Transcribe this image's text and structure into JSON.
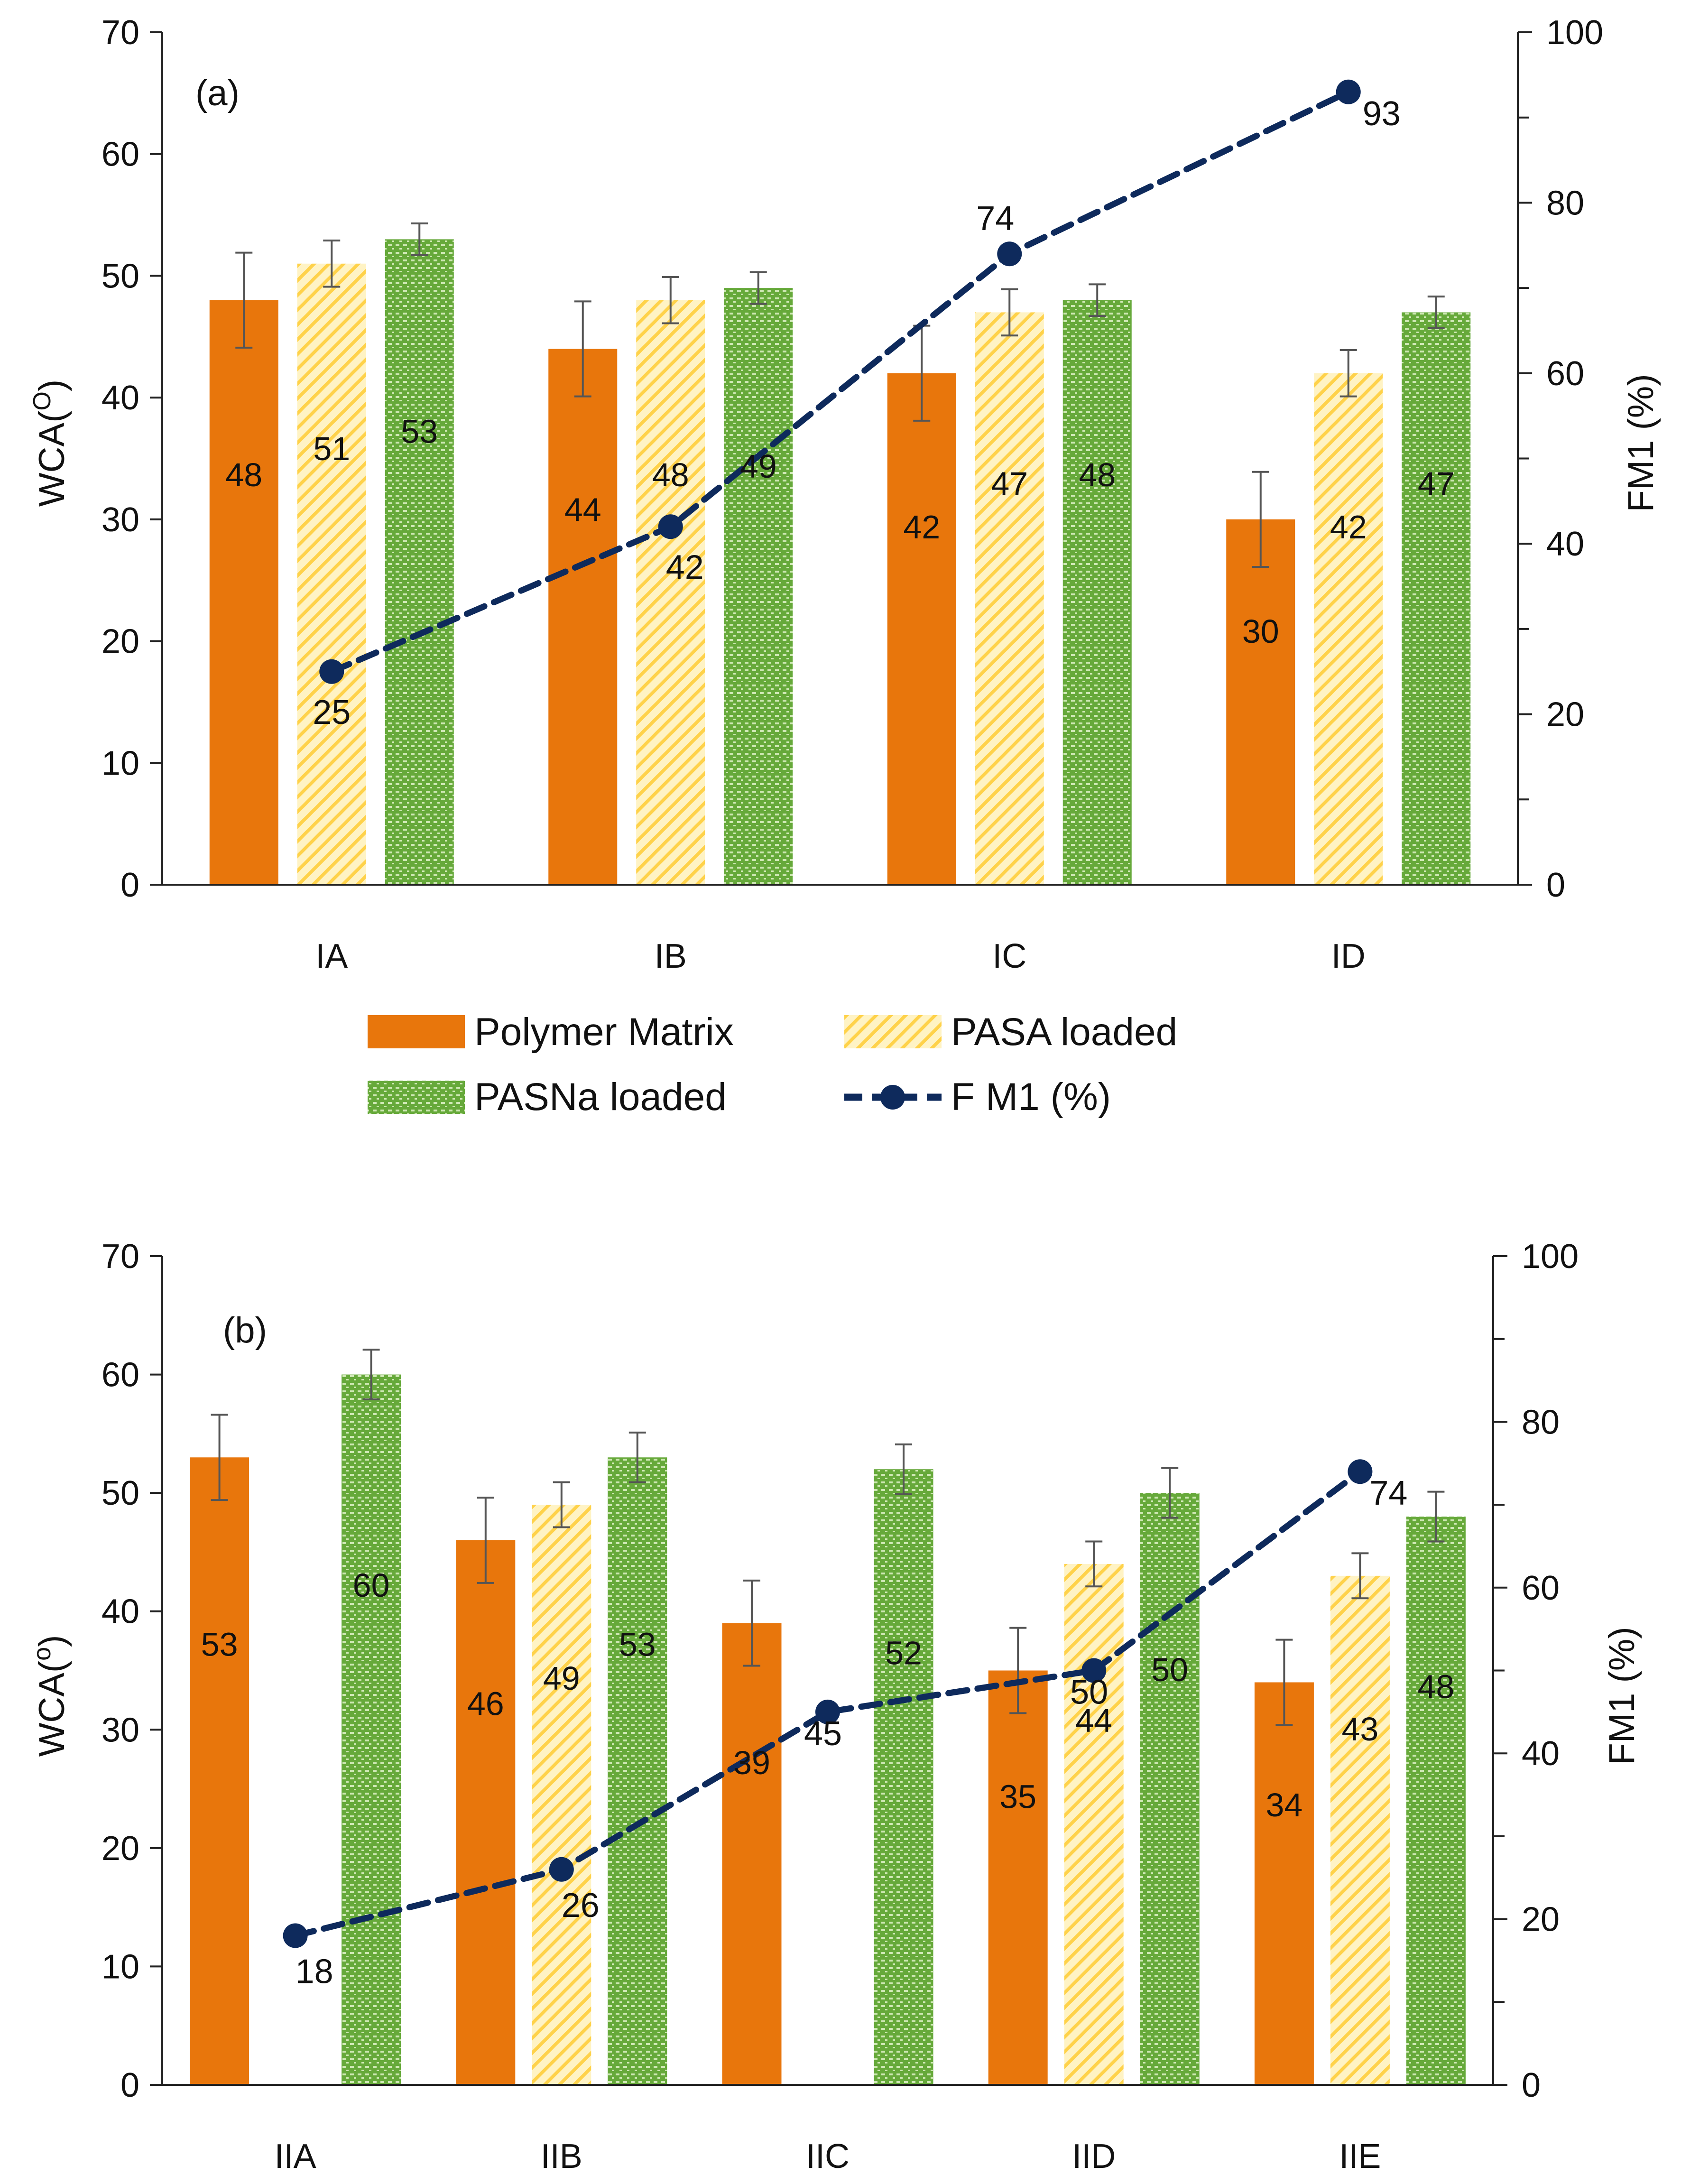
{
  "colors": {
    "polymer": "#E8760C",
    "pasa_fill": "#FFD24A",
    "pasa_stripe": "#FFF3C4",
    "pasna_fill": "#66A93A",
    "pasna_dot": "#CFE8B5",
    "line": "#0E2A5C",
    "axis": "#222222",
    "err": "#555555"
  },
  "legend": {
    "polymer": "Polymer Matrix",
    "pasa": "PASA loaded",
    "pasna": "PASNa loaded",
    "fm1": "F M1 (%)"
  },
  "chart_data": [
    {
      "type": "bar",
      "panel_label": "(a)",
      "ylabel": "WCA(O)",
      "y2label": "FM1 (%)",
      "ylim": [
        0,
        70
      ],
      "y2lim": [
        0,
        100
      ],
      "ymajor": 10,
      "y2major": 20,
      "y2minor": 10,
      "yticks": [
        "0",
        "10",
        "20",
        "30",
        "40",
        "50",
        "60",
        "70"
      ],
      "y2ticks": [
        "0",
        "20",
        "40",
        "60",
        "80",
        "100"
      ],
      "categories": [
        "IA",
        "IB",
        "IC",
        "ID"
      ],
      "series": [
        {
          "name": "Polymer Matrix",
          "key": "polymer",
          "values": [
            48,
            44,
            42,
            30
          ],
          "errors": [
            3.9,
            3.9,
            3.9,
            3.9
          ],
          "labels": [
            "48",
            "44",
            "42",
            "30"
          ]
        },
        {
          "name": "PASA loaded",
          "key": "pasa",
          "values": [
            51,
            48,
            47,
            42
          ],
          "errors": [
            1.9,
            1.9,
            1.9,
            1.9
          ],
          "labels": [
            "51",
            "48",
            "47",
            "42"
          ]
        },
        {
          "name": "PASNa loaded",
          "key": "pasna",
          "values": [
            53,
            49,
            48,
            47
          ],
          "errors": [
            1.3,
            1.3,
            1.3,
            1.3
          ],
          "labels": [
            "53",
            "49",
            "48",
            "47"
          ]
        }
      ],
      "line": {
        "name": "F M1 (%)",
        "values": [
          25,
          42,
          74,
          93
        ],
        "labels": [
          "25",
          "42",
          "74",
          "93"
        ]
      }
    },
    {
      "type": "bar",
      "panel_label": "(b)",
      "ylabel": "WCA(o)",
      "y2label": "FM1 (%)",
      "ylim": [
        0,
        70
      ],
      "y2lim": [
        0,
        100
      ],
      "ymajor": 10,
      "y2major": 20,
      "y2minor": 10,
      "yticks": [
        "0",
        "10",
        "20",
        "30",
        "40",
        "50",
        "60",
        "70"
      ],
      "y2ticks": [
        "0",
        "20",
        "40",
        "60",
        "80",
        "100"
      ],
      "categories": [
        "IIA",
        "IIB",
        "IIC",
        "IID",
        "IIE"
      ],
      "series": [
        {
          "name": "Polymer Matrix",
          "key": "polymer",
          "values": [
            53,
            46,
            39,
            35,
            34
          ],
          "errors": [
            3.6,
            3.6,
            3.6,
            3.6,
            3.6
          ],
          "labels": [
            "53",
            "46",
            "39",
            "35",
            "34"
          ]
        },
        {
          "name": "PASA loaded",
          "key": "pasa",
          "values": [
            null,
            49,
            null,
            44,
            43
          ],
          "errors": [
            null,
            1.9,
            null,
            1.9,
            1.9
          ],
          "labels": [
            null,
            "49",
            null,
            "44",
            "43"
          ]
        },
        {
          "name": "PASNa loaded",
          "key": "pasna",
          "values": [
            60,
            53,
            52,
            50,
            48
          ],
          "errors": [
            2.1,
            2.1,
            2.1,
            2.1,
            2.1
          ],
          "labels": [
            "60",
            "53",
            "52",
            "50",
            "48"
          ]
        }
      ],
      "line": {
        "name": "F M1 (%)",
        "values": [
          18,
          26,
          45,
          50,
          74
        ],
        "labels": [
          "18",
          "26",
          "45",
          "50",
          "74"
        ]
      }
    }
  ]
}
